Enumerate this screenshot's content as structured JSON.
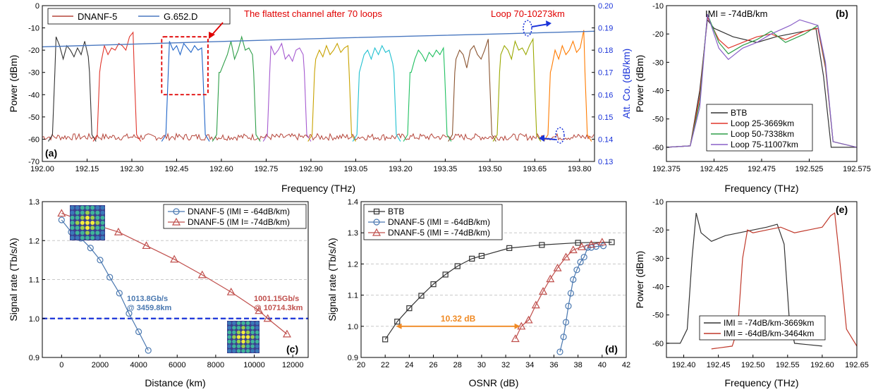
{
  "chart_data": [
    {
      "panel": "a",
      "type": "line",
      "panel_label": "(a)",
      "xlabel": "Frequency (THz)",
      "ylabel": "Power (dBm)",
      "y2label": "Att. Co. (dB/km)",
      "xlim": [
        192.0,
        193.85
      ],
      "ylim": [
        -70,
        0
      ],
      "y2lim": [
        0.13,
        0.2
      ],
      "xticks": [
        "192.00",
        "192.15",
        "192.30",
        "192.45",
        "192.60",
        "192.75",
        "192.90",
        "193.05",
        "193.20",
        "193.35",
        "193.50",
        "193.65",
        "193.80"
      ],
      "yticks": [
        "0",
        "-10",
        "-20",
        "-30",
        "-40",
        "-50",
        "-60",
        "-70"
      ],
      "y2ticks": [
        "0.20",
        "0.19",
        "0.18",
        "0.17",
        "0.16",
        "0.15",
        "0.14",
        "0.13"
      ],
      "legend": {
        "position": "top-left",
        "entries": [
          "DNANF-5",
          "G.652.D"
        ]
      },
      "annotations": {
        "flattest": "The flattest channel after 70 loops",
        "loop": "Loop 70-10273km"
      },
      "attenuation_series": [
        {
          "name": "DNANF-5",
          "color": "#b5453a",
          "axis": "left",
          "level_dbm": -59
        },
        {
          "name": "G.652.D",
          "color": "#4a78c0",
          "axis": "right",
          "x": [
            192.0,
            192.5,
            193.0,
            193.5,
            193.85
          ],
          "y": [
            0.1815,
            0.1835,
            0.1855,
            0.1872,
            0.1885
          ]
        }
      ],
      "channels": [
        {
          "center": 192.1,
          "color": "#333333",
          "peak": -14,
          "pattern": [
            -14,
            -18,
            -24,
            -18,
            -20,
            -23,
            -19,
            -22,
            -16,
            -23
          ]
        },
        {
          "center": 192.25,
          "color": "#e0352b",
          "peak": -11,
          "pattern": [
            -26,
            -18,
            -22,
            -19,
            -20,
            -17,
            -18,
            -20,
            -14,
            -12
          ]
        },
        {
          "center": 192.48,
          "color": "#1f64c8",
          "peak": -15,
          "pattern": [
            -16,
            -20,
            -18,
            -22,
            -17,
            -19,
            -21,
            -18,
            -20,
            -19
          ]
        },
        {
          "center": 192.65,
          "color": "#2e9e48",
          "peak": -13,
          "pattern": [
            -30,
            -26,
            -22,
            -16,
            -24,
            -20,
            -14,
            -20,
            -19,
            -22
          ]
        },
        {
          "center": 192.82,
          "color": "#a55ad0",
          "peak": -15,
          "pattern": [
            -18,
            -22,
            -20,
            -17,
            -24,
            -22,
            -25,
            -20,
            -19,
            -22
          ]
        },
        {
          "center": 192.97,
          "color": "#c8a200",
          "peak": -15,
          "pattern": [
            -24,
            -20,
            -23,
            -18,
            -22,
            -20,
            -17,
            -21,
            -19,
            -18
          ]
        },
        {
          "center": 193.12,
          "color": "#20c0d0",
          "peak": -17,
          "pattern": [
            -28,
            -22,
            -20,
            -24,
            -19,
            -22,
            -18,
            -21,
            -20,
            -26
          ]
        },
        {
          "center": 193.29,
          "color": "#20c060",
          "peak": -18,
          "pattern": [
            -30,
            -24,
            -20,
            -22,
            -25,
            -21,
            -23,
            -20,
            -22,
            -19
          ]
        },
        {
          "center": 193.44,
          "color": "#8a5430",
          "peak": -15,
          "pattern": [
            -24,
            -20,
            -22,
            -28,
            -20,
            -18,
            -22,
            -24,
            -20,
            -15
          ]
        },
        {
          "center": 193.59,
          "color": "#9aa800",
          "peak": -14,
          "pattern": [
            -22,
            -18,
            -20,
            -24,
            -16,
            -20,
            -19,
            -22,
            -18,
            -15
          ]
        },
        {
          "center": 193.76,
          "color": "#ff7b00",
          "peak": -11,
          "pattern": [
            -28,
            -20,
            -24,
            -18,
            -22,
            -20,
            -16,
            -21,
            -19,
            -11
          ]
        }
      ]
    },
    {
      "panel": "b",
      "type": "line",
      "panel_label": "(b)",
      "xlabel": "Frequency (THz)",
      "ylabel": "Power (dBm)",
      "title": "IMI = -74dB/km",
      "xlim": [
        192.375,
        192.575
      ],
      "ylim": [
        -65,
        -10
      ],
      "xticks": [
        "192.375",
        "192.425",
        "192.475",
        "192.525",
        "192.575"
      ],
      "yticks": [
        "-10",
        "-20",
        "-30",
        "-40",
        "-50",
        "-60"
      ],
      "legend": {
        "position": "bottom-center"
      },
      "series": [
        {
          "name": "BTB",
          "color": "#333333",
          "x": [
            192.375,
            192.4,
            192.41,
            192.418,
            192.425,
            192.445,
            192.47,
            192.49,
            192.505,
            192.52,
            192.532,
            192.54,
            192.548,
            192.56,
            192.575
          ],
          "y": [
            -60,
            -59.5,
            -40,
            -15,
            -18,
            -21,
            -23,
            -21,
            -20,
            -19,
            -18,
            -35,
            -60,
            -60,
            -60
          ]
        },
        {
          "name": "Loop 25-3669km",
          "color": "#e0352b",
          "x": [
            192.375,
            192.4,
            192.41,
            192.418,
            192.43,
            192.44,
            192.455,
            192.47,
            192.485,
            192.5,
            192.52,
            192.534,
            192.542,
            192.55,
            192.575
          ],
          "y": [
            -60,
            -59.5,
            -42,
            -14,
            -22,
            -25,
            -23,
            -21,
            -20,
            -22,
            -19,
            -18,
            -32,
            -58,
            -60
          ]
        },
        {
          "name": "Loop 50-7338km",
          "color": "#2e9e48",
          "x": [
            192.375,
            192.4,
            192.41,
            192.418,
            192.43,
            192.44,
            192.455,
            192.47,
            192.485,
            192.5,
            192.52,
            192.534,
            192.542,
            192.55,
            192.575
          ],
          "y": [
            -60,
            -59.5,
            -44,
            -13,
            -23,
            -27,
            -24,
            -22,
            -19,
            -23,
            -20,
            -17,
            -31,
            -58,
            -60
          ]
        },
        {
          "name": "Loop 75-11007km",
          "color": "#8a60c8",
          "x": [
            192.375,
            192.4,
            192.41,
            192.418,
            192.43,
            192.44,
            192.455,
            192.47,
            192.485,
            192.505,
            192.515,
            192.534,
            192.542,
            192.55,
            192.575
          ],
          "y": [
            -60,
            -59.5,
            -46,
            -13,
            -25,
            -29,
            -25,
            -23,
            -20,
            -17,
            -15,
            -17,
            -30,
            -58,
            -60
          ]
        }
      ]
    },
    {
      "panel": "c",
      "type": "line",
      "panel_label": "(c)",
      "xlabel": "Distance (km)",
      "ylabel": "Signal rate (Tb/s/λ)",
      "xlim": [
        -1000,
        12800
      ],
      "ylim": [
        0.9,
        1.3
      ],
      "xticks": [
        "0",
        "2000",
        "4000",
        "6000",
        "8000",
        "10000",
        "12000"
      ],
      "yticks": [
        "0.9",
        "1.0",
        "1.1",
        "1.2",
        "1.3"
      ],
      "threshold_y": 1.0,
      "legend": {
        "position": "top-right"
      },
      "annotations": [
        {
          "line1": "1013.8Gb/s",
          "line2": "@ 3459.8km",
          "color": "#4a78b0"
        },
        {
          "line1": "1001.15Gb/s",
          "line2": "@ 10714.3km",
          "color": "#c0504d"
        }
      ],
      "series": [
        {
          "name": "DNANF-5 (IMI = -64dB/km)",
          "color": "#4a78b0",
          "marker": "circle",
          "x": [
            0,
            500,
            1000,
            1500,
            2000,
            2500,
            3000,
            3500,
            4000,
            4500
          ],
          "y": [
            1.253,
            1.222,
            1.206,
            1.181,
            1.15,
            1.106,
            1.065,
            1.013,
            0.966,
            0.918
          ]
        },
        {
          "name": "DNANF-5 (IM I= -74dB/km)",
          "color": "#c0504d",
          "marker": "triangle",
          "x": [
            0,
            1450,
            2950,
            4400,
            5850,
            7300,
            8800,
            10250,
            10700,
            11700
          ],
          "y": [
            1.27,
            1.245,
            1.222,
            1.187,
            1.152,
            1.112,
            1.068,
            1.02,
            1.0,
            0.96
          ]
        }
      ]
    },
    {
      "panel": "d",
      "type": "line",
      "panel_label": "(d)",
      "xlabel": "OSNR (dB)",
      "ylabel": "Signal rate (Tb/s/λ)",
      "xlim": [
        20,
        42
      ],
      "ylim": [
        0.9,
        1.4
      ],
      "xticks": [
        "20",
        "22",
        "24",
        "26",
        "28",
        "30",
        "32",
        "34",
        "36",
        "38",
        "40",
        "42"
      ],
      "yticks": [
        "0.9",
        "1.0",
        "1.1",
        "1.2",
        "1.3",
        "1.4"
      ],
      "legend": {
        "position": "top-left"
      },
      "annotation": "10.32 dB",
      "osnr_gap": [
        22.9,
        33.2,
        1.0
      ],
      "series": [
        {
          "name": "BTB",
          "color": "#333333",
          "marker": "square",
          "x": [
            22.0,
            23.0,
            24.0,
            25.0,
            26.0,
            27.0,
            28.0,
            29.2,
            30.0,
            32.3,
            35.0,
            38.0,
            40.8
          ],
          "y": [
            0.958,
            1.015,
            1.058,
            1.098,
            1.135,
            1.166,
            1.193,
            1.217,
            1.226,
            1.251,
            1.261,
            1.268,
            1.27
          ]
        },
        {
          "name": "DNANF-5 (IMI = -64dB/km)",
          "color": "#4a78b0",
          "marker": "circle",
          "x": [
            36.5,
            36.8,
            37.0,
            37.2,
            37.4,
            37.6,
            37.9,
            38.2,
            38.5,
            38.8,
            39.1,
            39.5,
            40.1
          ],
          "y": [
            0.918,
            0.966,
            1.013,
            1.065,
            1.106,
            1.15,
            1.181,
            1.206,
            1.222,
            1.253,
            1.253,
            1.256,
            1.258
          ]
        },
        {
          "name": "DNANF-5 (IMI = -74dB/km)",
          "color": "#c0504d",
          "marker": "triangle",
          "x": [
            32.8,
            33.3,
            33.9,
            34.5,
            35.1,
            35.7,
            36.3,
            37.0,
            37.6,
            38.3,
            39.1,
            40.0
          ],
          "y": [
            0.96,
            1.0,
            1.02,
            1.068,
            1.112,
            1.152,
            1.187,
            1.222,
            1.245,
            1.255,
            1.263,
            1.27
          ]
        }
      ]
    },
    {
      "panel": "e",
      "type": "line",
      "panel_label": "(e)",
      "xlabel": "Frequency (THz)",
      "ylabel": "Power (dBm)",
      "xlim": [
        192.375,
        192.65
      ],
      "ylim": [
        -65,
        -10
      ],
      "xticks": [
        "192.40",
        "192.45",
        "192.50",
        "192.55",
        "192.60",
        "192.65"
      ],
      "yticks": [
        "-10",
        "-20",
        "-30",
        "-40",
        "-50",
        "-60"
      ],
      "legend": {
        "position": "bottom-center"
      },
      "series": [
        {
          "name": "IMI = -74dB/km-3669km",
          "color": "#333333",
          "x": [
            192.375,
            192.395,
            192.405,
            192.412,
            192.418,
            192.425,
            192.44,
            192.46,
            192.48,
            192.5,
            192.52,
            192.535,
            192.545,
            192.552,
            192.56,
            192.6
          ],
          "y": [
            -60,
            -60,
            -55,
            -30,
            -14,
            -21,
            -24,
            -22,
            -21,
            -20,
            -19,
            -18,
            -25,
            -50,
            -60,
            -61
          ]
        },
        {
          "name": "IMI = -64dB/km-3464km",
          "color": "#c0392b",
          "x": [
            192.44,
            192.47,
            192.478,
            192.485,
            192.492,
            192.5,
            192.52,
            192.54,
            192.56,
            192.58,
            192.6,
            192.612,
            192.618,
            192.625,
            192.635,
            192.65
          ],
          "y": [
            -62,
            -61,
            -55,
            -30,
            -20,
            -21,
            -20,
            -19,
            -21,
            -20,
            -19,
            -15,
            -14,
            -30,
            -55,
            -61
          ]
        }
      ]
    }
  ]
}
